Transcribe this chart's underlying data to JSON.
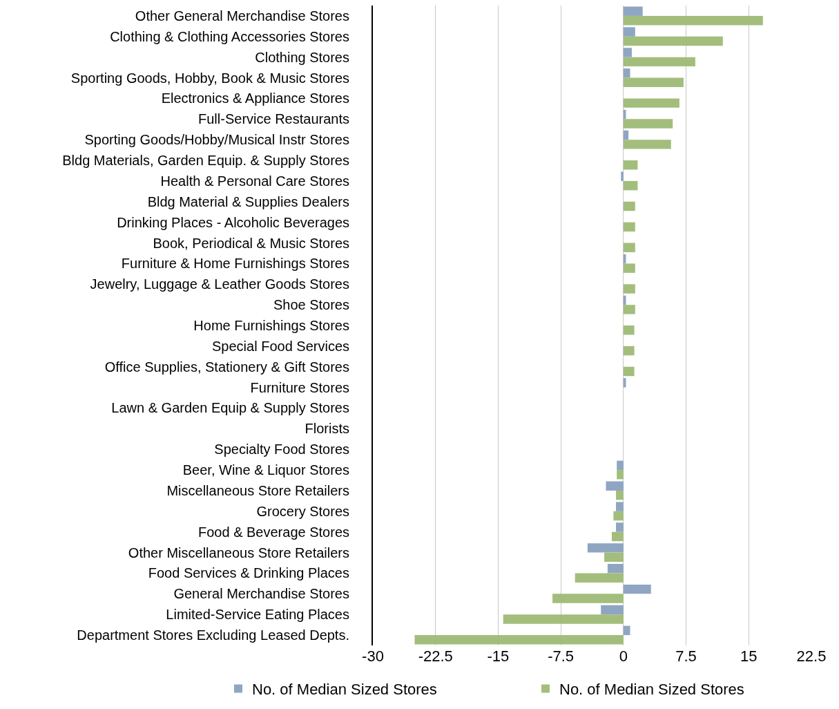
{
  "chart_data": {
    "type": "bar",
    "orientation": "horizontal",
    "categories": [
      "Other General Merchandise Stores",
      "Clothing & Clothing Accessories Stores",
      "Clothing Stores",
      "Sporting Goods, Hobby, Book & Music Stores",
      "Electronics & Appliance Stores",
      "Full-Service Restaurants",
      "Sporting Goods/Hobby/Musical Instr Stores",
      "Bldg Materials, Garden Equip. & Supply Stores",
      "Health & Personal Care Stores",
      "Bldg Material & Supplies Dealers",
      "Drinking Places - Alcoholic Beverages",
      "Book, Periodical & Music Stores",
      "Furniture & Home Furnishings Stores",
      "Jewelry, Luggage & Leather Goods Stores",
      "Shoe Stores",
      "Home Furnishings Stores",
      "Special Food Services",
      "Office Supplies, Stationery & Gift Stores",
      "Furniture Stores",
      "Lawn & Garden Equip & Supply Stores",
      "Florists",
      "Specialty Food Stores",
      "Beer, Wine & Liquor Stores",
      "Miscellaneous Store Retailers",
      "Grocery Stores",
      "Food & Beverage Stores",
      "Other Miscellaneous Store Retailers",
      "Food Services & Drinking Places",
      "General Merchandise Stores",
      "Limited-Service Eating Places",
      "Department Stores Excluding Leased Depts."
    ],
    "series": [
      {
        "name": "No. of Median Sized Stores",
        "color": "#8aa2c0",
        "values": [
          2.3,
          1.4,
          1.0,
          0.8,
          null,
          0.3,
          0.6,
          null,
          -0.3,
          null,
          null,
          null,
          0.3,
          null,
          0.3,
          null,
          null,
          null,
          0.3,
          null,
          null,
          null,
          -0.8,
          -2.1,
          -0.9,
          -0.9,
          -4.3,
          -1.9,
          3.3,
          -2.7,
          0.8
        ]
      },
      {
        "name": "No. of Median Sized Stores",
        "color": "#9fbb75",
        "values": [
          16.7,
          11.9,
          8.6,
          7.2,
          6.7,
          5.9,
          5.7,
          1.7,
          1.7,
          1.4,
          1.4,
          1.4,
          1.4,
          1.4,
          1.4,
          1.3,
          1.3,
          1.3,
          null,
          null,
          null,
          null,
          -0.8,
          -0.9,
          -1.2,
          -1.4,
          -2.3,
          -5.8,
          -8.5,
          -14.4,
          -25.0
        ]
      }
    ],
    "xlim": [
      -30,
      22.5
    ],
    "xticks": [
      -30,
      -22.5,
      -15,
      -7.5,
      0,
      7.5,
      15,
      22.5
    ],
    "grid": "x",
    "legend": "bottom"
  }
}
